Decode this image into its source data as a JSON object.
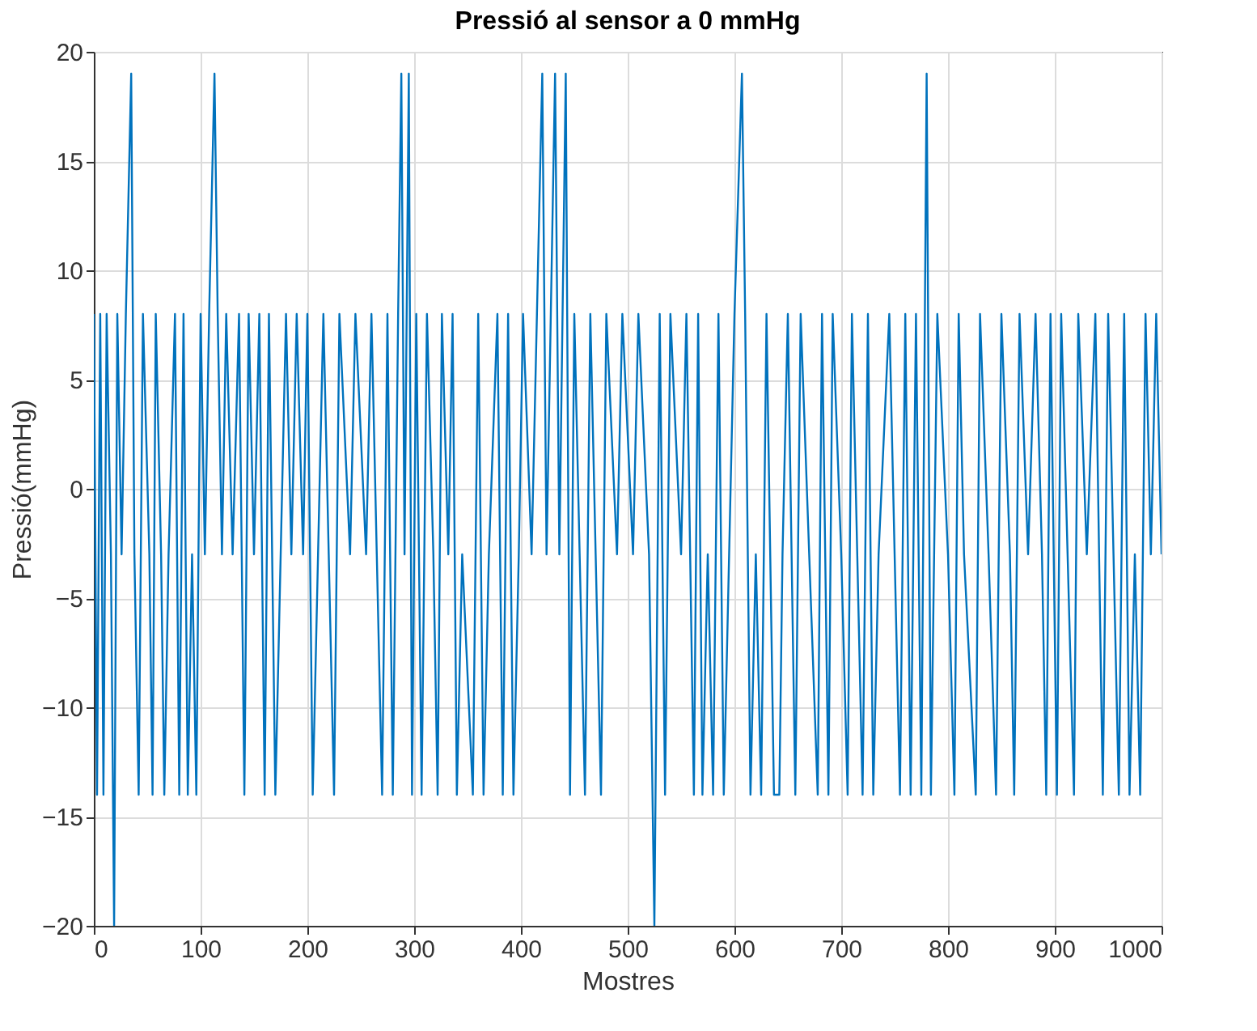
{
  "chart_data": {
    "type": "line",
    "title": "Pressió al sensor a 0 mmHg",
    "xlabel": "Mostres",
    "ylabel": "Pressió(mmHg)",
    "xlim": [
      0,
      1000
    ],
    "xticks": [
      0,
      100,
      200,
      300,
      400,
      500,
      600,
      700,
      800,
      900,
      1000
    ],
    "ylim": [
      -20,
      20
    ],
    "yticks": [
      -20,
      -15,
      -10,
      -5,
      0,
      5,
      10,
      15,
      20
    ],
    "grid": true,
    "series": [
      {
        "color": "#0072bd",
        "x": [
          0,
          3,
          6,
          9,
          12,
          16,
          19,
          22,
          26,
          30,
          35,
          38,
          42,
          46,
          52,
          55,
          58,
          63,
          66,
          70,
          76,
          80,
          84,
          88,
          92,
          96,
          100,
          104,
          108,
          113,
          116,
          120,
          124,
          130,
          136,
          141,
          145,
          150,
          155,
          160,
          164,
          170,
          175,
          180,
          185,
          190,
          196,
          200,
          205,
          210,
          215,
          220,
          225,
          230,
          240,
          245,
          255,
          260,
          265,
          270,
          275,
          280,
          285,
          288,
          291,
          295,
          298,
          302,
          307,
          312,
          318,
          322,
          326,
          332,
          336,
          340,
          345,
          355,
          360,
          365,
          370,
          378,
          383,
          388,
          393,
          398,
          402,
          410,
          415,
          420,
          424,
          428,
          432,
          436,
          442,
          446,
          450,
          455,
          460,
          465,
          470,
          475,
          480,
          490,
          495,
          505,
          510,
          520,
          525,
          530,
          535,
          540,
          550,
          555,
          562,
          566,
          570,
          575,
          580,
          585,
          590,
          595,
          600,
          607,
          610,
          615,
          620,
          625,
          630,
          637,
          642,
          645,
          650,
          657,
          662,
          670,
          678,
          682,
          688,
          692,
          700,
          706,
          710,
          715,
          720,
          725,
          730,
          735,
          745,
          755,
          760,
          765,
          770,
          775,
          780,
          784,
          790,
          800,
          806,
          810,
          815,
          826,
          830,
          838,
          845,
          850,
          858,
          862,
          867,
          875,
          882,
          888,
          892,
          896,
          902,
          906,
          912,
          918,
          922,
          930,
          938,
          945,
          950,
          955,
          960,
          965,
          970,
          975,
          980,
          985,
          990,
          995,
          1000
        ],
        "values": [
          8,
          -14,
          8,
          -14,
          8,
          -3,
          -20,
          8,
          -3,
          8,
          19,
          -3,
          -14,
          8,
          -3,
          -14,
          8,
          -3,
          -14,
          -3,
          8,
          -14,
          8,
          -14,
          -3,
          -14,
          8,
          -3,
          8,
          19,
          8,
          -3,
          8,
          -3,
          8,
          -14,
          8,
          -3,
          8,
          -14,
          8,
          -14,
          -3,
          8,
          -3,
          8,
          -3,
          8,
          -14,
          -3,
          8,
          -3,
          -14,
          8,
          -3,
          8,
          -3,
          8,
          -3,
          -14,
          8,
          -14,
          8,
          19,
          -3,
          19,
          -14,
          8,
          -14,
          8,
          -3,
          -14,
          8,
          -3,
          8,
          -14,
          -3,
          -14,
          8,
          -14,
          -3,
          8,
          -14,
          8,
          -14,
          -3,
          8,
          -3,
          8,
          19,
          -3,
          8,
          19,
          -3,
          19,
          -14,
          8,
          -3,
          -14,
          8,
          -3,
          -14,
          8,
          -3,
          8,
          -3,
          8,
          -3,
          -20,
          8,
          -14,
          8,
          -3,
          8,
          -14,
          8,
          -14,
          -3,
          -14,
          8,
          -14,
          -3,
          8,
          19,
          8,
          -14,
          -3,
          -14,
          8,
          -14,
          -14,
          -3,
          8,
          -14,
          8,
          -3,
          -14,
          8,
          -14,
          8,
          -3,
          -14,
          8,
          -3,
          -14,
          8,
          -14,
          -3,
          8,
          -14,
          8,
          -14,
          8,
          -14,
          19,
          -14,
          8,
          -3,
          -14,
          8,
          -3,
          -14,
          8,
          -3,
          -14,
          8,
          -3,
          -14,
          8,
          -3,
          8,
          -3,
          -14,
          8,
          -14,
          8,
          -3,
          -14,
          8,
          -3,
          8,
          -14,
          8,
          -3,
          -14,
          8,
          -14,
          -3,
          -14,
          8,
          -3,
          8,
          -3
        ]
      }
    ]
  }
}
